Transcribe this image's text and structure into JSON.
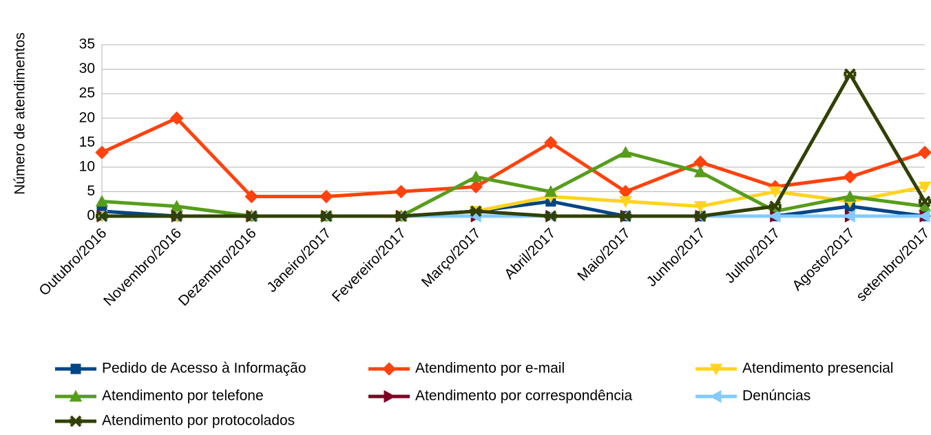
{
  "chart_data": {
    "type": "line",
    "y_label": "Número de atendimentos",
    "categories": [
      "Outubro/2016",
      "Novembro/2016",
      "Dezembro/2016",
      "Janeiro/2017",
      "Fevereiro/2017",
      "Março/2017",
      "Abril/2017",
      "Maio/2017",
      "Junho/2017",
      "Julho/2017",
      "Agosto/2017",
      "setembro/2017"
    ],
    "series": [
      {
        "name": "Pedido de Acesso à Informação",
        "color": "#004586",
        "marker": "square",
        "values": [
          1,
          0,
          0,
          0,
          0,
          1,
          3,
          0,
          0,
          0,
          2,
          0
        ]
      },
      {
        "name": "Atendimento por e-mail",
        "color": "#ff420e",
        "marker": "diamond",
        "values": [
          13,
          20,
          4,
          4,
          5,
          6,
          15,
          5,
          11,
          6,
          8,
          13
        ]
      },
      {
        "name": "Atendimento presencial",
        "color": "#ffd320",
        "marker": "triangle-down",
        "values": [
          0,
          0,
          0,
          0,
          0,
          1,
          4,
          3,
          2,
          5,
          3,
          6
        ]
      },
      {
        "name": "Atendimento por telefone",
        "color": "#579d1c",
        "marker": "triangle-up",
        "values": [
          3,
          2,
          0,
          0,
          0,
          8,
          5,
          13,
          9,
          1,
          4,
          2
        ]
      },
      {
        "name": "Atendimento por correspondência",
        "color": "#7e0021",
        "marker": "triangle-right",
        "values": [
          0,
          0,
          0,
          0,
          0,
          0,
          0,
          0,
          0,
          0,
          0,
          0
        ]
      },
      {
        "name": "Denúncias",
        "color": "#83caff",
        "marker": "triangle-left",
        "values": [
          0,
          0,
          0,
          0,
          0,
          0,
          0,
          0,
          0,
          0,
          0,
          0
        ]
      },
      {
        "name": "Atendimento por protocolados",
        "color": "#314004",
        "marker": "x",
        "values": [
          0,
          0,
          0,
          0,
          0,
          1,
          0,
          0,
          0,
          2,
          29,
          3
        ]
      }
    ],
    "ylim": [
      0,
      35
    ],
    "yticks": [
      0,
      5,
      10,
      15,
      20,
      25,
      30,
      35
    ],
    "grid": true,
    "legend": "bottom"
  }
}
